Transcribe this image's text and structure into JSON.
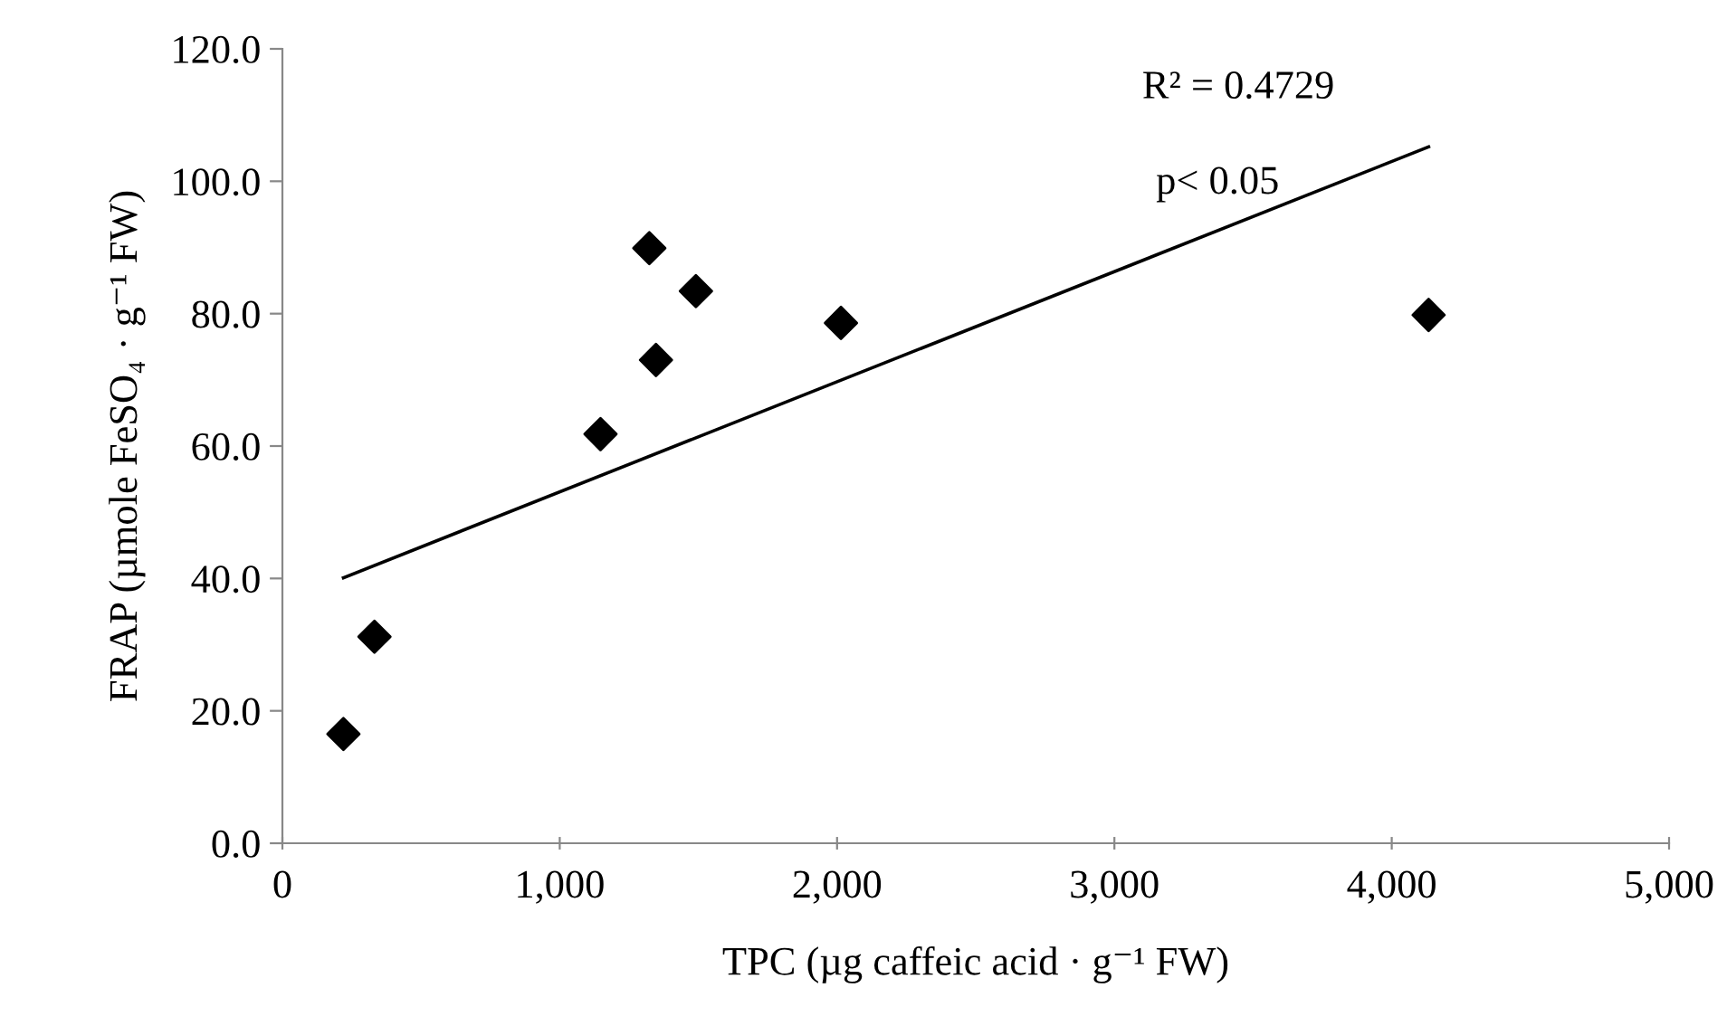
{
  "chart_data": {
    "type": "scatter",
    "xlabel": "TPC (µg caffeic acid · g⁻¹ FW)",
    "ylabel": "FRAP (µmole FeSO₄ · g⁻¹ FW)",
    "annotations": [
      "R² = 0.4729",
      "p< 0.05"
    ],
    "series": [
      {
        "color": "#000000",
        "marker": "diamond",
        "x": [
          220,
          332,
          1147,
          1323,
          1347,
          1491,
          2014,
          4133
        ],
        "values": [
          16.5,
          31.2,
          61.8,
          89.9,
          73.0,
          83.4,
          78.6,
          79.8
        ]
      },
      {
        "type": "line",
        "color": "#000000",
        "marker": "none",
        "x": [
          220,
          4133
        ],
        "values": [
          40.1,
          105.2
        ]
      }
    ],
    "xlim": [
      0,
      5000
    ],
    "xticks": [
      {
        "value": 0,
        "label": "0"
      },
      {
        "value": 1000,
        "label": "1,000"
      },
      {
        "value": 2000,
        "label": "2,000"
      },
      {
        "value": 3000,
        "label": "3,000"
      },
      {
        "value": 4000,
        "label": "4,000"
      },
      {
        "value": 5000,
        "label": "5,000"
      }
    ],
    "ylim": [
      0,
      120
    ],
    "yticks": [
      {
        "value": 0,
        "label": "0.0"
      },
      {
        "value": 20,
        "label": "20.0"
      },
      {
        "value": 40,
        "label": "40.0"
      },
      {
        "value": 60,
        "label": "60.0"
      },
      {
        "value": 80,
        "label": "80.0"
      },
      {
        "value": 100,
        "label": "100.0"
      },
      {
        "value": 120,
        "label": "120.0"
      }
    ],
    "grid": false,
    "legend": false
  }
}
